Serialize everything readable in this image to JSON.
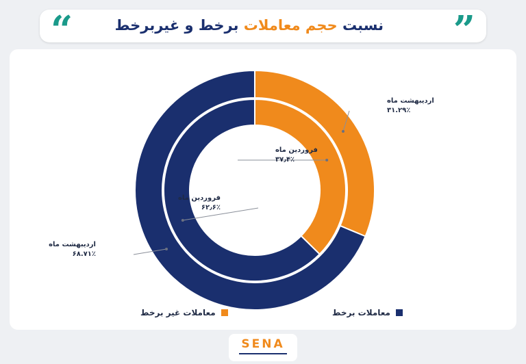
{
  "header": {
    "title_part1": "نسبت",
    "title_part2": "حجم معاملات",
    "title_part3": "برخط و غیربرخط",
    "quote_left": "“",
    "quote_right": "”"
  },
  "colors": {
    "online": "#1a2f6e",
    "offline": "#f08a1c"
  },
  "chart_data": {
    "type": "pie",
    "subtype": "nested-donut",
    "series": [
      {
        "name": "اردیبهشت ماه",
        "ring": "outer",
        "labels": {
          "offline": "اردیبهشت ماه\n۳۱.۲۹٪",
          "online": "اردیبهشت ماه\n۶۸.۷۱٪"
        },
        "values": {
          "offline": 31.29,
          "online": 68.71
        }
      },
      {
        "name": "فروردین ماه",
        "ring": "inner",
        "labels": {
          "offline": "فروردین ماه\n۳۷٫۴٪",
          "online": "فروردین ماه\n۶۲٫۶٪"
        },
        "values": {
          "offline": 37.4,
          "online": 62.6
        }
      }
    ],
    "legend": [
      {
        "key": "offline",
        "label": "معاملات غیر برخط"
      },
      {
        "key": "online",
        "label": "معاملات برخط"
      }
    ],
    "legend_position": "bottom"
  },
  "footer": {
    "logo": "SENA"
  }
}
